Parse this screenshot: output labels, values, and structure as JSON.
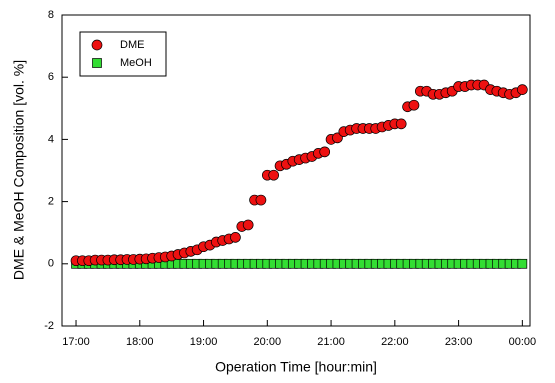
{
  "chart_data": {
    "type": "scatter",
    "xlabel": "Operation Time [hour:min]",
    "ylabel": "DME & MeOH Composition [vol. %]",
    "x": [
      17.0,
      17.1,
      17.2,
      17.3,
      17.4,
      17.5,
      17.6,
      17.7,
      17.8,
      17.9,
      18.0,
      18.1,
      18.2,
      18.3,
      18.4,
      18.5,
      18.6,
      18.7,
      18.8,
      18.9,
      19.0,
      19.1,
      19.2,
      19.3,
      19.4,
      19.5,
      19.6,
      19.7,
      19.8,
      19.9,
      20.0,
      20.1,
      20.2,
      20.3,
      20.4,
      20.5,
      20.6,
      20.7,
      20.8,
      20.9,
      21.0,
      21.1,
      21.2,
      21.3,
      21.4,
      21.5,
      21.6,
      21.7,
      21.8,
      21.9,
      22.0,
      22.1,
      22.2,
      22.3,
      22.4,
      22.5,
      22.6,
      22.7,
      22.8,
      22.9,
      23.0,
      23.1,
      23.2,
      23.3,
      23.4,
      23.5,
      23.6,
      23.7,
      23.8,
      23.9,
      24.0
    ],
    "series": [
      {
        "name": "MeOH",
        "color": "#33dd33",
        "marker": "square",
        "values": [
          0,
          0,
          0,
          0,
          0,
          0,
          0,
          0,
          0,
          0,
          0,
          0,
          0,
          0,
          0,
          0,
          0,
          0,
          0,
          0,
          0,
          0,
          0,
          0,
          0,
          0,
          0,
          0,
          0,
          0,
          0,
          0,
          0,
          0,
          0,
          0,
          0,
          0,
          0,
          0,
          0,
          0,
          0,
          0,
          0,
          0,
          0,
          0,
          0,
          0,
          0,
          0,
          0,
          0,
          0,
          0,
          0,
          0,
          0,
          0,
          0,
          0,
          0,
          0,
          0,
          0,
          0,
          0,
          0,
          0,
          0
        ]
      },
      {
        "name": "DME",
        "color": "#ee1111",
        "marker": "circle",
        "values": [
          0.1,
          0.1,
          0.1,
          0.12,
          0.12,
          0.12,
          0.13,
          0.13,
          0.14,
          0.14,
          0.15,
          0.16,
          0.18,
          0.2,
          0.22,
          0.25,
          0.3,
          0.35,
          0.4,
          0.45,
          0.55,
          0.6,
          0.7,
          0.75,
          0.8,
          0.85,
          1.2,
          1.25,
          2.05,
          2.05,
          2.85,
          2.85,
          3.15,
          3.2,
          3.3,
          3.35,
          3.4,
          3.45,
          3.55,
          3.6,
          4.0,
          4.05,
          4.25,
          4.3,
          4.35,
          4.35,
          4.35,
          4.35,
          4.4,
          4.45,
          4.5,
          4.5,
          5.05,
          5.1,
          5.55,
          5.55,
          5.45,
          5.45,
          5.5,
          5.55,
          5.7,
          5.7,
          5.75,
          5.75,
          5.75,
          5.6,
          5.55,
          5.5,
          5.45,
          5.5,
          5.6
        ]
      }
    ],
    "xlim": [
      16.78,
      24.12
    ],
    "xticks": [
      {
        "value": 17,
        "label": "17:00"
      },
      {
        "value": 18,
        "label": "18:00"
      },
      {
        "value": 19,
        "label": "19:00"
      },
      {
        "value": 20,
        "label": "20:00"
      },
      {
        "value": 21,
        "label": "21:00"
      },
      {
        "value": 22,
        "label": "22:00"
      },
      {
        "value": 23,
        "label": "23:00"
      },
      {
        "value": 24,
        "label": "00:00"
      }
    ],
    "ylim": [
      -2,
      8
    ],
    "yticks": [
      -2,
      0,
      2,
      4,
      6,
      8
    ],
    "legend": "upper-left",
    "grid": false
  }
}
